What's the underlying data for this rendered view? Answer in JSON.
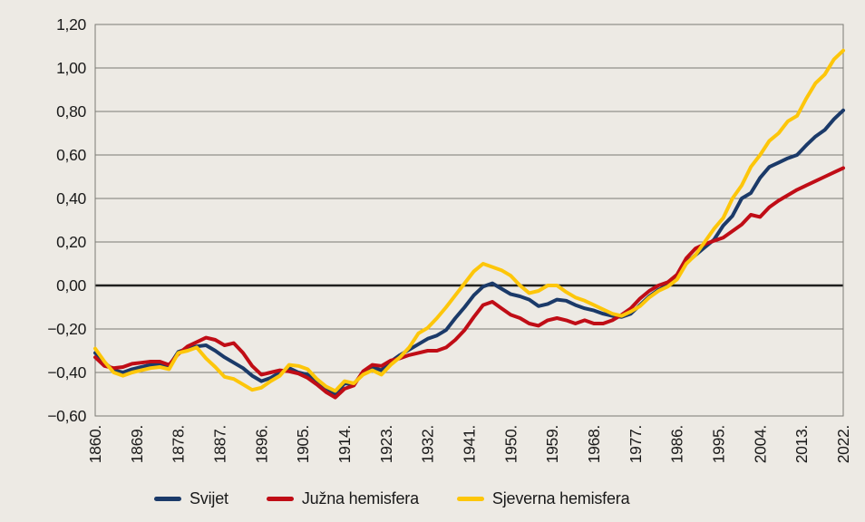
{
  "chart_data": {
    "type": "line",
    "title": "",
    "xlabel": "",
    "ylabel": "",
    "grid": "horizontal",
    "legend_position": "bottom",
    "zero_line": true,
    "y_axis": {
      "min": -0.6,
      "max": 1.2,
      "step": 0.2,
      "tick_values": [
        1.2,
        1.0,
        0.8,
        0.6,
        0.4,
        0.2,
        0.0,
        -0.2,
        -0.4,
        -0.6
      ],
      "tick_labels": [
        "1,20",
        "1,00",
        "0,80",
        "0,60",
        "0,40",
        "0,20",
        "0,00",
        "−0,20",
        "−0,40",
        "−0,60"
      ]
    },
    "x_axis": {
      "min": 1860,
      "max": 2022,
      "tick_years": [
        1860,
        1869,
        1878,
        1887,
        1896,
        1905,
        1914,
        1923,
        1932,
        1941,
        1950,
        1959,
        1968,
        1977,
        1986,
        1995,
        2004,
        2013,
        2022
      ],
      "tick_labels": [
        "1860.",
        "1869.",
        "1878.",
        "1887.",
        "1896.",
        "1905.",
        "1914.",
        "1923.",
        "1932.",
        "1941.",
        "1950.",
        "1959.",
        "1968.",
        "1977.",
        "1986.",
        "1995.",
        "2004.",
        "2013.",
        "2022."
      ]
    },
    "x": [
      1860,
      1862,
      1864,
      1866,
      1868,
      1870,
      1872,
      1874,
      1876,
      1878,
      1880,
      1882,
      1884,
      1886,
      1888,
      1890,
      1892,
      1894,
      1896,
      1898,
      1900,
      1902,
      1904,
      1906,
      1908,
      1910,
      1912,
      1914,
      1916,
      1918,
      1920,
      1922,
      1924,
      1926,
      1928,
      1930,
      1932,
      1934,
      1936,
      1938,
      1940,
      1942,
      1944,
      1946,
      1948,
      1950,
      1952,
      1954,
      1956,
      1958,
      1960,
      1962,
      1964,
      1966,
      1968,
      1970,
      1972,
      1974,
      1976,
      1978,
      1980,
      1982,
      1984,
      1986,
      1988,
      1990,
      1992,
      1994,
      1996,
      1998,
      2000,
      2002,
      2004,
      2006,
      2008,
      2010,
      2012,
      2014,
      2016,
      2018,
      2020,
      2022
    ],
    "series": [
      {
        "name": "Svijet",
        "color": "#1b3a69",
        "values": [
          -0.31,
          -0.355,
          -0.39,
          -0.4,
          -0.385,
          -0.375,
          -0.365,
          -0.36,
          -0.37,
          -0.305,
          -0.29,
          -0.28,
          -0.275,
          -0.3,
          -0.33,
          -0.355,
          -0.38,
          -0.415,
          -0.44,
          -0.425,
          -0.4,
          -0.38,
          -0.4,
          -0.41,
          -0.44,
          -0.47,
          -0.5,
          -0.45,
          -0.455,
          -0.4,
          -0.375,
          -0.39,
          -0.35,
          -0.32,
          -0.295,
          -0.27,
          -0.245,
          -0.23,
          -0.205,
          -0.15,
          -0.1,
          -0.045,
          -0.005,
          0.01,
          -0.015,
          -0.04,
          -0.05,
          -0.065,
          -0.095,
          -0.085,
          -0.065,
          -0.07,
          -0.09,
          -0.105,
          -0.115,
          -0.13,
          -0.14,
          -0.145,
          -0.13,
          -0.09,
          -0.05,
          -0.02,
          0.0,
          0.035,
          0.105,
          0.14,
          0.175,
          0.21,
          0.275,
          0.32,
          0.4,
          0.425,
          0.495,
          0.545,
          0.565,
          0.585,
          0.6,
          0.645,
          0.685,
          0.715,
          0.765,
          0.805
        ]
      },
      {
        "name": "Južna hemisfera",
        "color": "#c00d16",
        "values": [
          -0.33,
          -0.37,
          -0.38,
          -0.375,
          -0.36,
          -0.355,
          -0.35,
          -0.35,
          -0.365,
          -0.315,
          -0.28,
          -0.26,
          -0.24,
          -0.25,
          -0.275,
          -0.265,
          -0.31,
          -0.37,
          -0.41,
          -0.4,
          -0.39,
          -0.395,
          -0.405,
          -0.425,
          -0.455,
          -0.49,
          -0.515,
          -0.475,
          -0.46,
          -0.395,
          -0.365,
          -0.37,
          -0.345,
          -0.335,
          -0.32,
          -0.31,
          -0.3,
          -0.3,
          -0.285,
          -0.25,
          -0.205,
          -0.145,
          -0.09,
          -0.075,
          -0.105,
          -0.135,
          -0.15,
          -0.175,
          -0.185,
          -0.16,
          -0.15,
          -0.16,
          -0.175,
          -0.16,
          -0.175,
          -0.175,
          -0.16,
          -0.135,
          -0.105,
          -0.06,
          -0.025,
          0.0,
          0.015,
          0.05,
          0.125,
          0.17,
          0.19,
          0.205,
          0.22,
          0.25,
          0.28,
          0.325,
          0.315,
          0.36,
          0.39,
          0.415,
          0.44,
          0.46,
          0.48,
          0.5,
          0.52,
          0.54
        ]
      },
      {
        "name": "Sjeverna hemisfera",
        "color": "#fdc60a",
        "values": [
          -0.29,
          -0.35,
          -0.4,
          -0.415,
          -0.4,
          -0.39,
          -0.38,
          -0.375,
          -0.385,
          -0.31,
          -0.3,
          -0.285,
          -0.335,
          -0.375,
          -0.42,
          -0.43,
          -0.455,
          -0.48,
          -0.47,
          -0.44,
          -0.415,
          -0.365,
          -0.37,
          -0.385,
          -0.43,
          -0.465,
          -0.485,
          -0.44,
          -0.45,
          -0.41,
          -0.39,
          -0.41,
          -0.365,
          -0.33,
          -0.285,
          -0.22,
          -0.195,
          -0.15,
          -0.1,
          -0.045,
          0.01,
          0.065,
          0.1,
          0.085,
          0.07,
          0.045,
          0.0,
          -0.035,
          -0.025,
          0.0,
          0.0,
          -0.03,
          -0.055,
          -0.07,
          -0.09,
          -0.11,
          -0.13,
          -0.14,
          -0.12,
          -0.095,
          -0.055,
          -0.025,
          -0.005,
          0.028,
          0.1,
          0.14,
          0.2,
          0.26,
          0.31,
          0.4,
          0.46,
          0.545,
          0.6,
          0.665,
          0.7,
          0.755,
          0.78,
          0.86,
          0.93,
          0.97,
          1.04,
          1.08
        ]
      }
    ]
  },
  "style": {
    "background": "#edeae4",
    "grid_color": "#7c7b75",
    "frame_color": "#7c7b75",
    "zero_line_color": "#1f1f1e",
    "text_color": "#1a1a1a",
    "line_width": 4,
    "zero_line_width": 2.6
  },
  "legend": {
    "items": [
      {
        "label": "Svijet"
      },
      {
        "label": "Južna hemisfera"
      },
      {
        "label": "Sjeverna hemisfera"
      }
    ]
  }
}
